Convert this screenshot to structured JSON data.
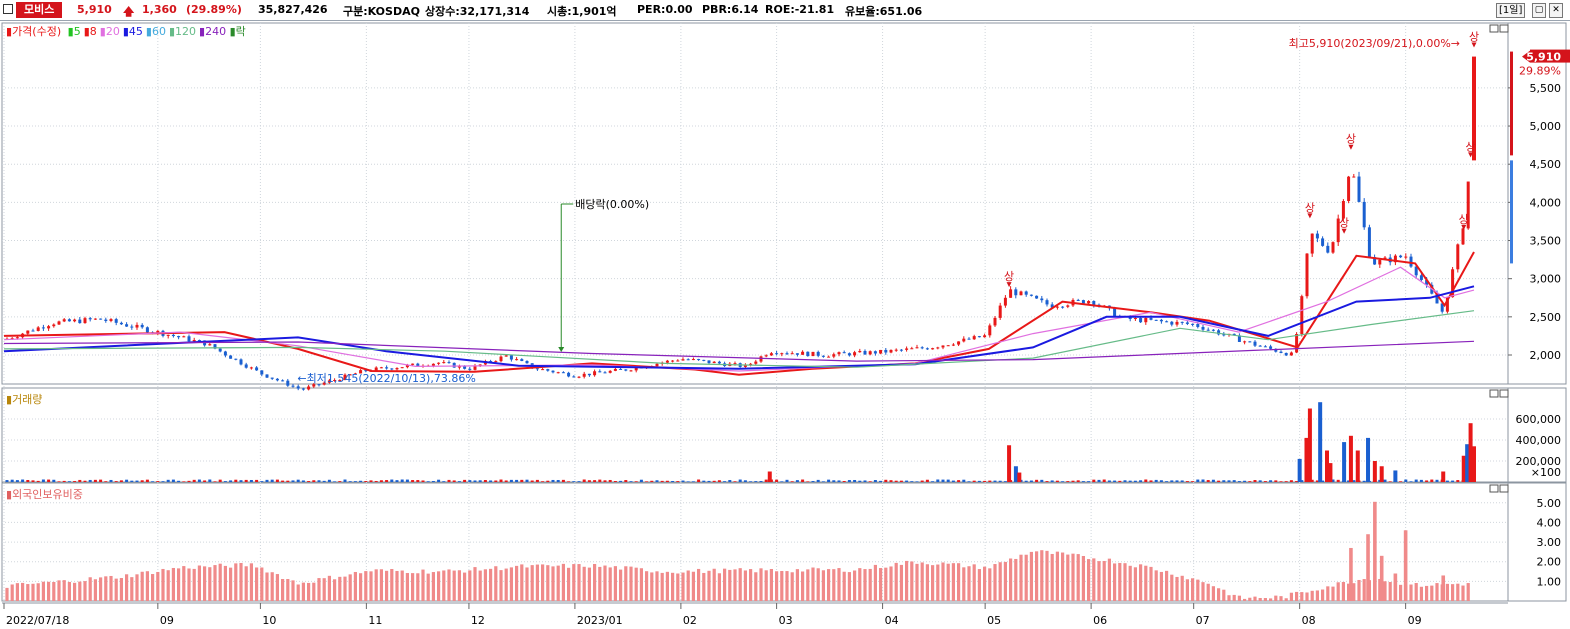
{
  "header": {
    "stock_name": "모비스",
    "price": "5,910",
    "change": "1,360",
    "change_pct": "(29.89%)",
    "volume": "35,827,426",
    "market": "구분:KOSDAQ",
    "listed": "상장수:32,171,314",
    "mcap": "시총:1,901억",
    "per": "PER:0.00",
    "pbr": "PBR:6.14",
    "roe": "ROE:-21.81",
    "float": "유보율:651.06",
    "period": "[1일]"
  },
  "price_legend": {
    "title": "가격(수정)",
    "ma": [
      {
        "label": "5",
        "color": "#22c322"
      },
      {
        "label": "8",
        "color": "#e81818"
      },
      {
        "label": "20",
        "color": "#e070e0"
      },
      {
        "label": "45",
        "color": "#1a1ae0"
      },
      {
        "label": "60",
        "color": "#44aadd"
      },
      {
        "label": "120",
        "color": "#66bb88"
      },
      {
        "label": "240",
        "color": "#8822bb"
      }
    ],
    "event": "락"
  },
  "volume_legend": "거래량",
  "foreign_legend": "외국인보유비중",
  "annotations": {
    "high": "최고5,910(2023/09/21),0.00%→",
    "low": "←최저1,545(2022/10/13),73.86%",
    "dividend": "배당락(0.00%)",
    "upper_limit": "상",
    "current_price": "5,910",
    "current_pct": "29.89%"
  },
  "colors": {
    "up": "#e81818",
    "down": "#1a5fd0",
    "foreign_bar": "#f08a8a"
  },
  "chart_data": [
    {
      "type": "line",
      "name": "price",
      "x_range": [
        "2022/07/18",
        "2023/09/21"
      ],
      "x_ticks": [
        "2022/07/18",
        "09",
        "10",
        "11",
        "12",
        "2023/01",
        "02",
        "03",
        "04",
        "05",
        "06",
        "07",
        "08",
        "09"
      ],
      "y_ticks": [
        "5,500",
        "5,000",
        "4,500",
        "4,000",
        "3,500",
        "3,000",
        "2,500",
        "2,000"
      ],
      "ylim": [
        1620,
        6350
      ],
      "close_points": [
        [
          "2022/07/18",
          2200
        ],
        [
          "2022/08/01",
          2420
        ],
        [
          "2022/08/15",
          2470
        ],
        [
          "2022/09/01",
          2300
        ],
        [
          "2022/09/15",
          2150
        ],
        [
          "2022/10/01",
          1760
        ],
        [
          "2022/10/13",
          1545
        ],
        [
          "2022/11/01",
          1800
        ],
        [
          "2022/11/22",
          1900
        ],
        [
          "2022/12/01",
          1820
        ],
        [
          "2022/12/12",
          1990
        ],
        [
          "2022/12/20",
          1830
        ],
        [
          "2023/01/01",
          1730
        ],
        [
          "2023/01/16",
          1810
        ],
        [
          "2023/02/01",
          1950
        ],
        [
          "2023/02/20",
          1850
        ],
        [
          "2023/02/27",
          2050
        ],
        [
          "2023/03/15",
          2000
        ],
        [
          "2023/04/01",
          2040
        ],
        [
          "2023/04/15",
          2100
        ],
        [
          "2023/05/01",
          2250
        ],
        [
          "2023/05/08",
          2850
        ],
        [
          "2023/05/20",
          2650
        ],
        [
          "2023/06/01",
          2720
        ],
        [
          "2023/06/10",
          2480
        ],
        [
          "2023/07/01",
          2400
        ],
        [
          "2023/07/20",
          2120
        ],
        [
          "2023/07/30",
          2000
        ],
        [
          "2023/08/01",
          2500
        ],
        [
          "2023/08/04",
          3600
        ],
        [
          "2023/08/10",
          3350
        ],
        [
          "2023/08/16",
          4500
        ],
        [
          "2023/08/22",
          3200
        ],
        [
          "2023/09/01",
          3300
        ],
        [
          "2023/09/12",
          2550
        ],
        [
          "2023/09/18",
          3750
        ],
        [
          "2023/09/20",
          4550
        ],
        [
          "2023/09/21",
          5910
        ]
      ],
      "ma_series": [
        {
          "name": "8",
          "points": [
            [
              0,
              2250
            ],
            [
              0.15,
              2300
            ],
            [
              0.2,
              2080
            ],
            [
              0.25,
              1790
            ],
            [
              0.32,
              1780
            ],
            [
              0.4,
              1890
            ],
            [
              0.47,
              1810
            ],
            [
              0.5,
              1740
            ],
            [
              0.55,
              1820
            ],
            [
              0.62,
              1890
            ],
            [
              0.67,
              2080
            ],
            [
              0.72,
              2700
            ],
            [
              0.78,
              2560
            ],
            [
              0.82,
              2450
            ],
            [
              0.88,
              2100
            ],
            [
              0.92,
              3300
            ],
            [
              0.96,
              3200
            ],
            [
              0.98,
              2650
            ],
            [
              1,
              3350
            ]
          ]
        },
        {
          "name": "20",
          "points": [
            [
              0,
              2200
            ],
            [
              0.12,
              2300
            ],
            [
              0.2,
              2120
            ],
            [
              0.28,
              1850
            ],
            [
              0.4,
              1870
            ],
            [
              0.5,
              1790
            ],
            [
              0.62,
              1890
            ],
            [
              0.7,
              2280
            ],
            [
              0.78,
              2560
            ],
            [
              0.84,
              2300
            ],
            [
              0.9,
              2700
            ],
            [
              0.95,
              3150
            ],
            [
              0.98,
              2750
            ],
            [
              1,
              2850
            ]
          ]
        },
        {
          "name": "45",
          "points": [
            [
              0,
              2050
            ],
            [
              0.2,
              2230
            ],
            [
              0.26,
              2050
            ],
            [
              0.35,
              1860
            ],
            [
              0.5,
              1820
            ],
            [
              0.62,
              1880
            ],
            [
              0.7,
              2100
            ],
            [
              0.75,
              2500
            ],
            [
              0.8,
              2500
            ],
            [
              0.86,
              2250
            ],
            [
              0.92,
              2700
            ],
            [
              0.97,
              2750
            ],
            [
              1,
              2900
            ]
          ]
        },
        {
          "name": "120",
          "points": [
            [
              0,
              2080
            ],
            [
              0.2,
              2100
            ],
            [
              0.3,
              2050
            ],
            [
              0.45,
              1890
            ],
            [
              0.58,
              1840
            ],
            [
              0.7,
              1960
            ],
            [
              0.8,
              2350
            ],
            [
              0.86,
              2200
            ],
            [
              0.93,
              2400
            ],
            [
              1,
              2580
            ]
          ]
        },
        {
          "name": "240",
          "points": [
            [
              0,
              2150
            ],
            [
              0.2,
              2170
            ],
            [
              0.4,
              2020
            ],
            [
              0.58,
              1920
            ],
            [
              0.7,
              1940
            ],
            [
              0.85,
              2060
            ],
            [
              1,
              2180
            ]
          ]
        }
      ]
    },
    {
      "type": "bar",
      "name": "거래량",
      "y_ticks": [
        "600,000",
        "400,000",
        "200,000"
      ],
      "y_unit": "×100",
      "ylim": [
        0,
        800000
      ]
    },
    {
      "type": "bar",
      "name": "외국인보유비중",
      "y_ticks": [
        "5.00",
        "4.00",
        "3.00",
        "2.00",
        "1.00"
      ],
      "ylim": [
        0,
        5.6
      ]
    }
  ]
}
